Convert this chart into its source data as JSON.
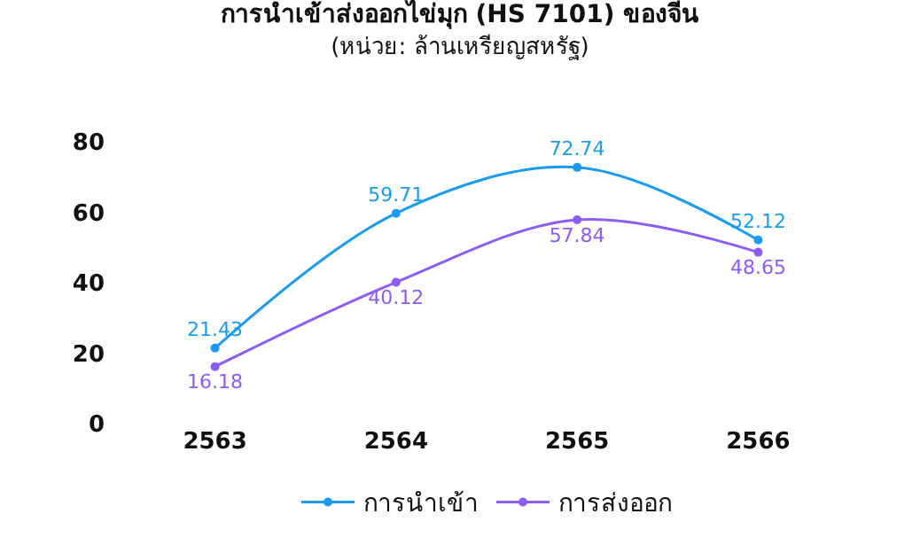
{
  "chart_data": {
    "type": "line",
    "title": "การนำเข้าส่งออกไข่มุก (HS 7101) ของจีน",
    "subtitle": "(หน่วย: ล้านเหรียญสหรัฐ)",
    "categories": [
      "2563",
      "2564",
      "2565",
      "2566"
    ],
    "series": [
      {
        "name": "การนำเข้า",
        "color": "#1a9bf0",
        "values": [
          21.43,
          59.71,
          72.74,
          52.12
        ]
      },
      {
        "name": "การส่งออก",
        "color": "#8b5cf6",
        "values": [
          16.18,
          40.12,
          57.84,
          48.65
        ]
      }
    ],
    "ylim": [
      0,
      80
    ],
    "yticks": [
      0,
      20,
      40,
      60,
      80
    ],
    "grid": false,
    "legend": "bottom",
    "marker": "circle",
    "line_style": "solid",
    "data_labels": true
  }
}
